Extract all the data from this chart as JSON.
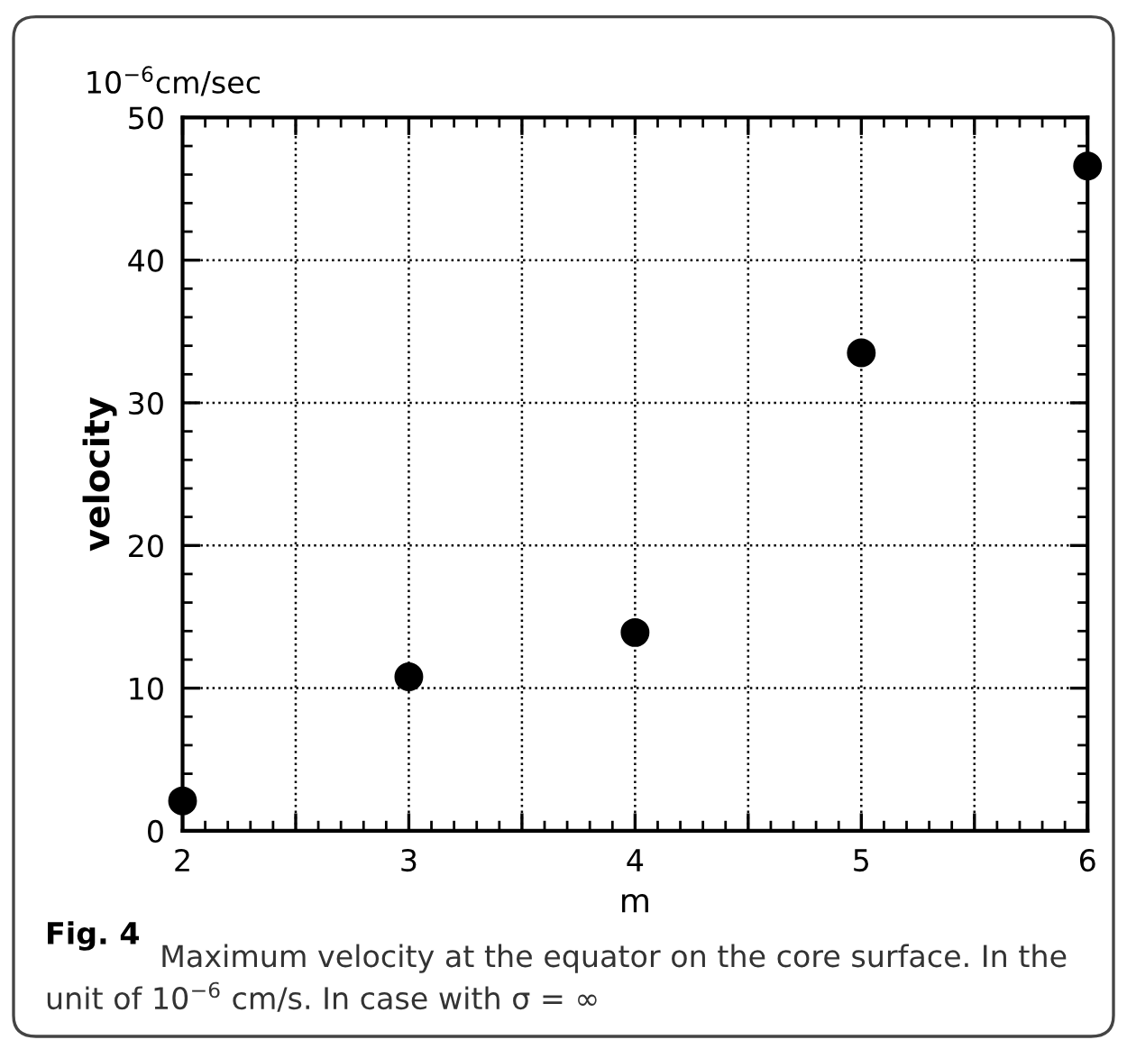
{
  "chart_data": {
    "type": "scatter",
    "xlabel": "m",
    "ylabel": "velocity",
    "x": [
      2,
      3,
      4,
      5,
      6
    ],
    "values": [
      2.1,
      10.8,
      13.9,
      33.5,
      46.6
    ],
    "color": "#000000",
    "marker": "circle",
    "xlim": [
      2,
      6
    ],
    "ylim": [
      0,
      50
    ],
    "xticks": [
      2,
      {
        "value": 2.5,
        "label": null
      },
      3,
      {
        "value": 3.5,
        "label": null
      },
      4,
      {
        "value": 4.5,
        "label": null
      },
      5,
      {
        "value": 5.5,
        "label": null
      },
      6
    ],
    "yticks": [
      0,
      10,
      20,
      30,
      40,
      50
    ],
    "grid": true,
    "annotations": [
      "10$^{−6}$cm/sec",
      "Fig. 4",
      "Maximum velocity at the equator on the core surface. In the unit of 10$^{−6}$ cm/s. In case with σ = ∞"
    ]
  }
}
